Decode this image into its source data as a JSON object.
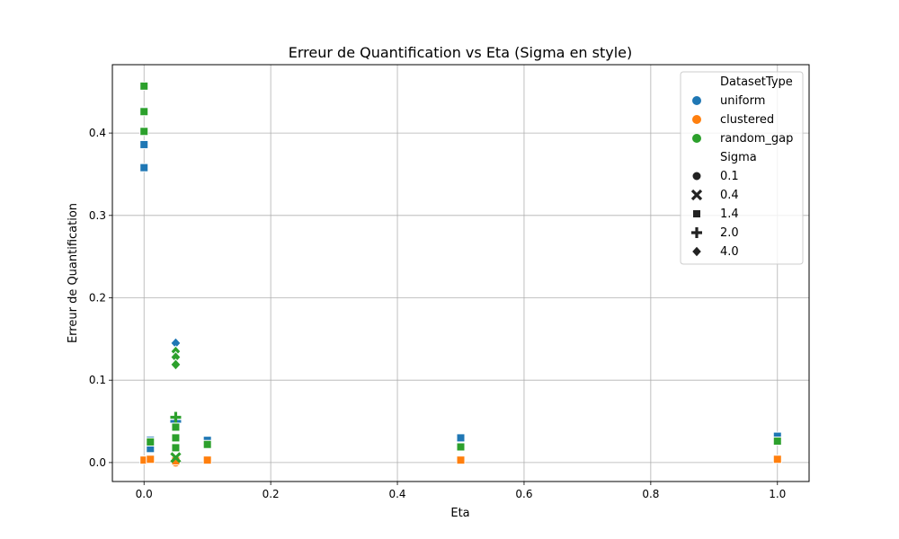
{
  "chart_data": {
    "type": "scatter",
    "title": "Erreur de Quantification vs Eta (Sigma en style)",
    "xlabel": "Eta",
    "ylabel": "Erreur de Quantification",
    "xlim": [
      -0.05,
      1.05
    ],
    "ylim": [
      -0.023,
      0.483
    ],
    "grid": true,
    "x_ticks": [
      0.0,
      0.2,
      0.4,
      0.6,
      0.8,
      1.0
    ],
    "x_tick_labels": [
      "0.0",
      "0.2",
      "0.4",
      "0.6",
      "0.8",
      "1.0"
    ],
    "y_ticks": [
      0.0,
      0.1,
      0.2,
      0.3,
      0.4
    ],
    "y_tick_labels": [
      "0.0",
      "0.1",
      "0.2",
      "0.3",
      "0.4"
    ],
    "legend": {
      "position": "top-right",
      "hue_title": "DatasetType",
      "hue_entries": [
        {
          "label": "uniform",
          "color": "#1f77b4"
        },
        {
          "label": "clustered",
          "color": "#ff7f0e"
        },
        {
          "label": "random_gap",
          "color": "#2ca02c"
        }
      ],
      "style_title": "Sigma",
      "style_entries": [
        {
          "label": "0.1",
          "marker": "circle"
        },
        {
          "label": "0.4",
          "marker": "x"
        },
        {
          "label": "1.4",
          "marker": "square"
        },
        {
          "label": "2.0",
          "marker": "plus"
        },
        {
          "label": "4.0",
          "marker": "diamond"
        }
      ]
    },
    "series": [
      {
        "name": "uniform",
        "color": "#1f77b4",
        "points": [
          {
            "x": 0.0,
            "y": 0.358,
            "marker": "square"
          },
          {
            "x": 0.0,
            "y": 0.386,
            "marker": "square"
          },
          {
            "x": 0.0,
            "y": 0.427,
            "marker": "square"
          },
          {
            "x": 0.01,
            "y": 0.017,
            "marker": "square"
          },
          {
            "x": 0.01,
            "y": 0.027,
            "marker": "square"
          },
          {
            "x": 0.05,
            "y": 0.145,
            "marker": "diamond"
          },
          {
            "x": 0.05,
            "y": 0.05,
            "marker": "plus"
          },
          {
            "x": 0.05,
            "y": 0.03,
            "marker": "square"
          },
          {
            "x": 0.05,
            "y": 0.018,
            "marker": "square"
          },
          {
            "x": 0.1,
            "y": 0.027,
            "marker": "square"
          },
          {
            "x": 0.5,
            "y": 0.03,
            "marker": "square"
          },
          {
            "x": 1.0,
            "y": 0.032,
            "marker": "square"
          }
        ]
      },
      {
        "name": "clustered",
        "color": "#ff7f0e",
        "points": [
          {
            "x": 0.0,
            "y": 0.003,
            "marker": "square"
          },
          {
            "x": 0.01,
            "y": 0.004,
            "marker": "square"
          },
          {
            "x": 0.05,
            "y": 0.0,
            "marker": "circle"
          },
          {
            "x": 0.05,
            "y": 0.002,
            "marker": "square"
          },
          {
            "x": 0.1,
            "y": 0.003,
            "marker": "square"
          },
          {
            "x": 0.5,
            "y": 0.003,
            "marker": "square"
          },
          {
            "x": 1.0,
            "y": 0.004,
            "marker": "square"
          }
        ]
      },
      {
        "name": "random_gap",
        "color": "#2ca02c",
        "points": [
          {
            "x": 0.0,
            "y": 0.457,
            "marker": "square"
          },
          {
            "x": 0.0,
            "y": 0.426,
            "marker": "square"
          },
          {
            "x": 0.0,
            "y": 0.402,
            "marker": "square"
          },
          {
            "x": 0.01,
            "y": 0.025,
            "marker": "square"
          },
          {
            "x": 0.05,
            "y": 0.135,
            "marker": "diamond"
          },
          {
            "x": 0.05,
            "y": 0.128,
            "marker": "diamond"
          },
          {
            "x": 0.05,
            "y": 0.119,
            "marker": "diamond"
          },
          {
            "x": 0.05,
            "y": 0.055,
            "marker": "plus"
          },
          {
            "x": 0.05,
            "y": 0.043,
            "marker": "square"
          },
          {
            "x": 0.05,
            "y": 0.03,
            "marker": "square"
          },
          {
            "x": 0.05,
            "y": 0.018,
            "marker": "square"
          },
          {
            "x": 0.05,
            "y": 0.006,
            "marker": "x"
          },
          {
            "x": 0.1,
            "y": 0.022,
            "marker": "square"
          },
          {
            "x": 0.5,
            "y": 0.019,
            "marker": "square"
          },
          {
            "x": 1.0,
            "y": 0.026,
            "marker": "square"
          }
        ]
      }
    ]
  }
}
